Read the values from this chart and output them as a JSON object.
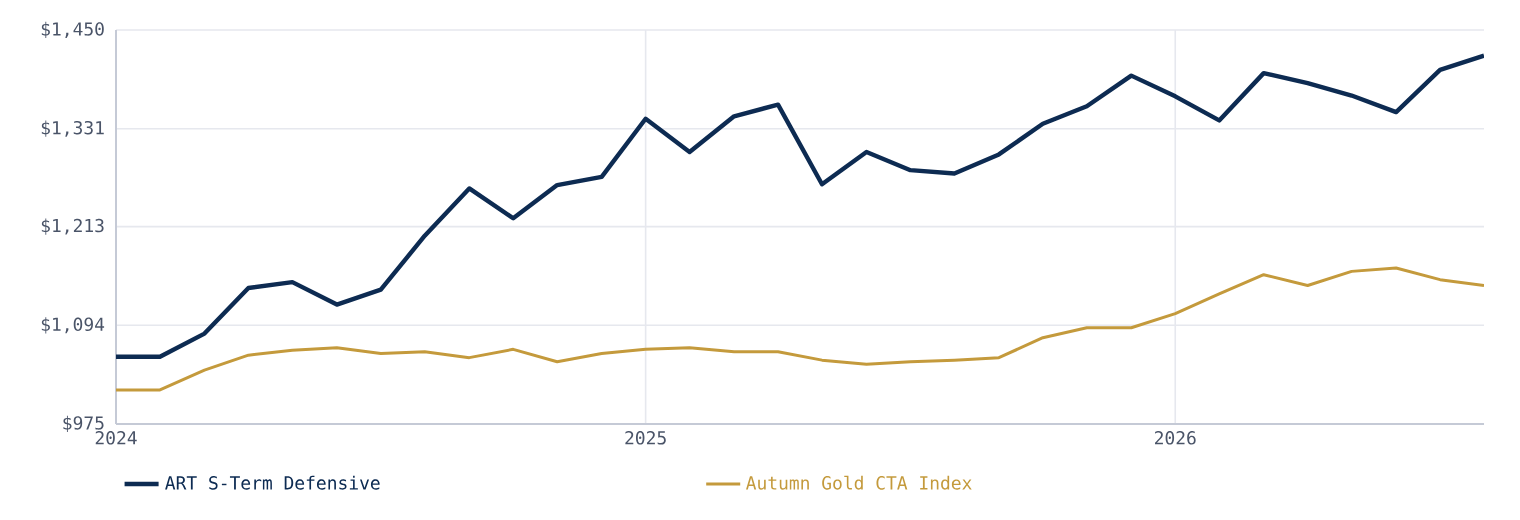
{
  "chart_data": {
    "type": "line",
    "x": [
      2024.0,
      2024.083,
      2024.167,
      2024.25,
      2024.333,
      2024.417,
      2024.5,
      2024.583,
      2024.667,
      2024.75,
      2024.833,
      2024.917,
      2025.0,
      2025.083,
      2025.167,
      2025.25,
      2025.333,
      2025.417,
      2025.5,
      2025.583,
      2025.667,
      2025.75,
      2025.833,
      2025.917,
      2026.0,
      2026.083,
      2026.167,
      2026.25,
      2026.333,
      2026.417,
      2026.5,
      2026.583
    ],
    "series": [
      {
        "name": "ART S-Term Defensive",
        "color": "#0d2b52",
        "values": [
          1056,
          1056,
          1084,
          1139,
          1146,
          1119,
          1137,
          1202,
          1259,
          1223,
          1263,
          1273,
          1343,
          1303,
          1346,
          1360,
          1264,
          1303,
          1281,
          1277,
          1300,
          1337,
          1358,
          1395,
          1370,
          1341,
          1398,
          1386,
          1371,
          1351,
          1402,
          1419
        ]
      },
      {
        "name": "Autumn Gold CTA Index",
        "color": "#c49a3c",
        "values": [
          1016,
          1016,
          1040,
          1058,
          1064,
          1067,
          1060,
          1062,
          1055,
          1065,
          1050,
          1060,
          1065,
          1067,
          1062,
          1062,
          1052,
          1047,
          1050,
          1052,
          1055,
          1079,
          1091,
          1091,
          1108,
          1132,
          1155,
          1142,
          1159,
          1163,
          1149,
          1142
        ]
      }
    ],
    "xlim": [
      2024.0,
      2026.583
    ],
    "xticks": [
      2024,
      2025,
      2026
    ],
    "ylim": [
      975,
      1450
    ],
    "yticks": [
      {
        "value": 975,
        "label": "$975"
      },
      {
        "value": 1094,
        "label": "$1,094"
      },
      {
        "value": 1213,
        "label": "$1,213"
      },
      {
        "value": 1331,
        "label": "$1,331"
      },
      {
        "value": 1450,
        "label": "$1,450"
      }
    ],
    "grid": true,
    "legend": "bottom",
    "marker": "none",
    "line_style": "solid"
  }
}
